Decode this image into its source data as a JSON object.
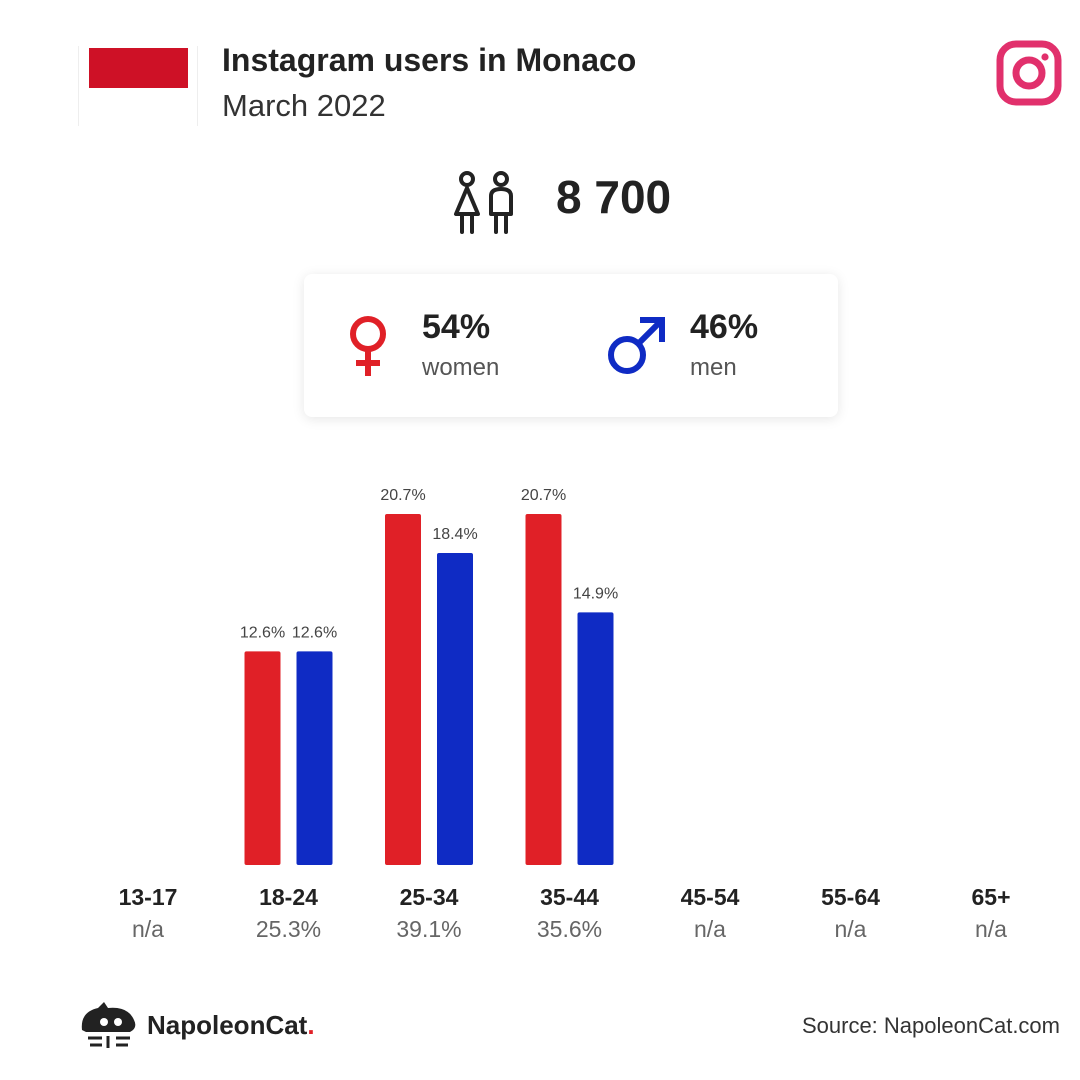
{
  "header": {
    "title": "Instagram users in Monaco",
    "subtitle": "March 2022"
  },
  "flag": {
    "top_color": "#ce1126",
    "bottom_color": "#ffffff"
  },
  "icons": {
    "flag": "monaco-flag-icon",
    "platform": "instagram-icon",
    "users": "people-icon",
    "female": "female-symbol-icon",
    "male": "male-symbol-icon",
    "brand": "napoleoncat-logo-icon"
  },
  "totals": {
    "users": "8 700"
  },
  "gender": {
    "women": {
      "pct": "54%",
      "label": "women"
    },
    "men": {
      "pct": "46%",
      "label": "men"
    }
  },
  "colors": {
    "women": "#e02027",
    "men": "#0f2bc4",
    "instagram": "#e1306c"
  },
  "chart_data": {
    "type": "bar",
    "categories": [
      "13-17",
      "18-24",
      "25-34",
      "35-44",
      "45-54",
      "55-64",
      "65+"
    ],
    "category_shares": [
      "n/a",
      "25.3%",
      "39.1%",
      "35.6%",
      "n/a",
      "n/a",
      "n/a"
    ],
    "series": [
      {
        "name": "women",
        "values": [
          null,
          12.6,
          20.7,
          20.7,
          null,
          null,
          null
        ],
        "labels": [
          null,
          "12.6%",
          "20.7%",
          "20.7%",
          null,
          null,
          null
        ]
      },
      {
        "name": "men",
        "values": [
          null,
          12.6,
          18.4,
          14.9,
          null,
          null,
          null
        ],
        "labels": [
          null,
          "12.6%",
          "18.4%",
          "14.9%",
          null,
          null,
          null
        ]
      }
    ],
    "ylim": [
      0,
      20.7
    ],
    "grid": false,
    "legend": "none"
  },
  "footer": {
    "brand": "NapoleonCat",
    "brand_dot": ".",
    "source": "Source: NapoleonCat.com"
  }
}
